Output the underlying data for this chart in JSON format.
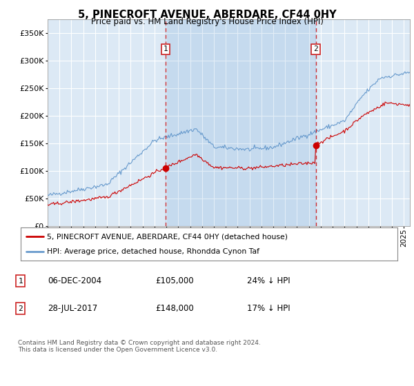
{
  "title": "5, PINECROFT AVENUE, ABERDARE, CF44 0HY",
  "subtitle": "Price paid vs. HM Land Registry's House Price Index (HPI)",
  "bg_color": "#dce9f5",
  "red_line_color": "#cc0000",
  "blue_line_color": "#6699cc",
  "grid_color": "#ffffff",
  "ylim": [
    0,
    375000
  ],
  "yticks": [
    0,
    50000,
    100000,
    150000,
    200000,
    250000,
    300000,
    350000
  ],
  "ytick_labels": [
    "£0",
    "£50K",
    "£100K",
    "£150K",
    "£200K",
    "£250K",
    "£300K",
    "£350K"
  ],
  "legend_entry1": "5, PINECROFT AVENUE, ABERDARE, CF44 0HY (detached house)",
  "legend_entry2": "HPI: Average price, detached house, Rhondda Cynon Taf",
  "transaction1_date": "06-DEC-2004",
  "transaction1_price": "£105,000",
  "transaction1_hpi": "24% ↓ HPI",
  "transaction1_x": 2004.92,
  "transaction1_y": 105000,
  "transaction2_date": "28-JUL-2017",
  "transaction2_price": "£148,000",
  "transaction2_hpi": "17% ↓ HPI",
  "transaction2_x": 2017.57,
  "transaction2_y": 148000,
  "footer": "Contains HM Land Registry data © Crown copyright and database right 2024.\nThis data is licensed under the Open Government Licence v3.0.",
  "xmin": 1995.0,
  "xmax": 2025.5
}
